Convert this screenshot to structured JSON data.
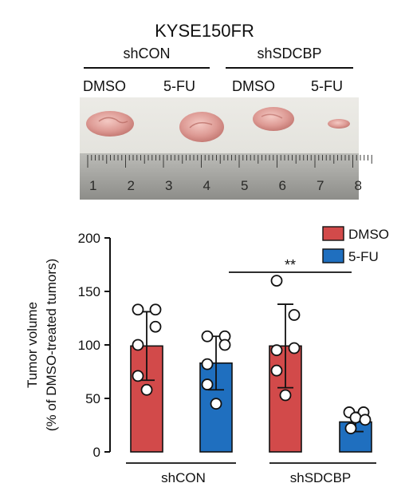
{
  "figure": {
    "title": "KYSE150FR",
    "groups": [
      "shCON",
      "shSDCBP"
    ],
    "conditions": [
      "DMSO",
      "5-FU",
      "DMSO",
      "5-FU"
    ],
    "ruler_numbers": [
      "1",
      "2",
      "3",
      "4",
      "5",
      "6",
      "7",
      "8"
    ]
  },
  "chart_data": {
    "type": "bar",
    "categories": [
      "shCON DMSO",
      "shCON 5-FU",
      "shSDCBP DMSO",
      "shSDCBP 5-FU"
    ],
    "group_labels": [
      "shCON",
      "shSDCBP"
    ],
    "series": [
      {
        "name": "DMSO",
        "color": "#d24a4a"
      },
      {
        "name": "5-FU",
        "color": "#1f6fbf"
      }
    ],
    "values": [
      99,
      83,
      99,
      28
    ],
    "errors": [
      32,
      25,
      39,
      9
    ],
    "points": [
      [
        133,
        133,
        117,
        100,
        71,
        58
      ],
      [
        108,
        108,
        100,
        82,
        63,
        45
      ],
      [
        160,
        128,
        97,
        95,
        76,
        53
      ],
      [
        37,
        37,
        32,
        30,
        22
      ]
    ],
    "ylabel_line1": "Tumor volume",
    "ylabel_line2": "(% of DMSO-treated tumors)",
    "ylim": [
      0,
      200
    ],
    "yticks": [
      "0",
      "50",
      "100",
      "150",
      "200"
    ],
    "significance": "**",
    "legend": "top-right"
  }
}
